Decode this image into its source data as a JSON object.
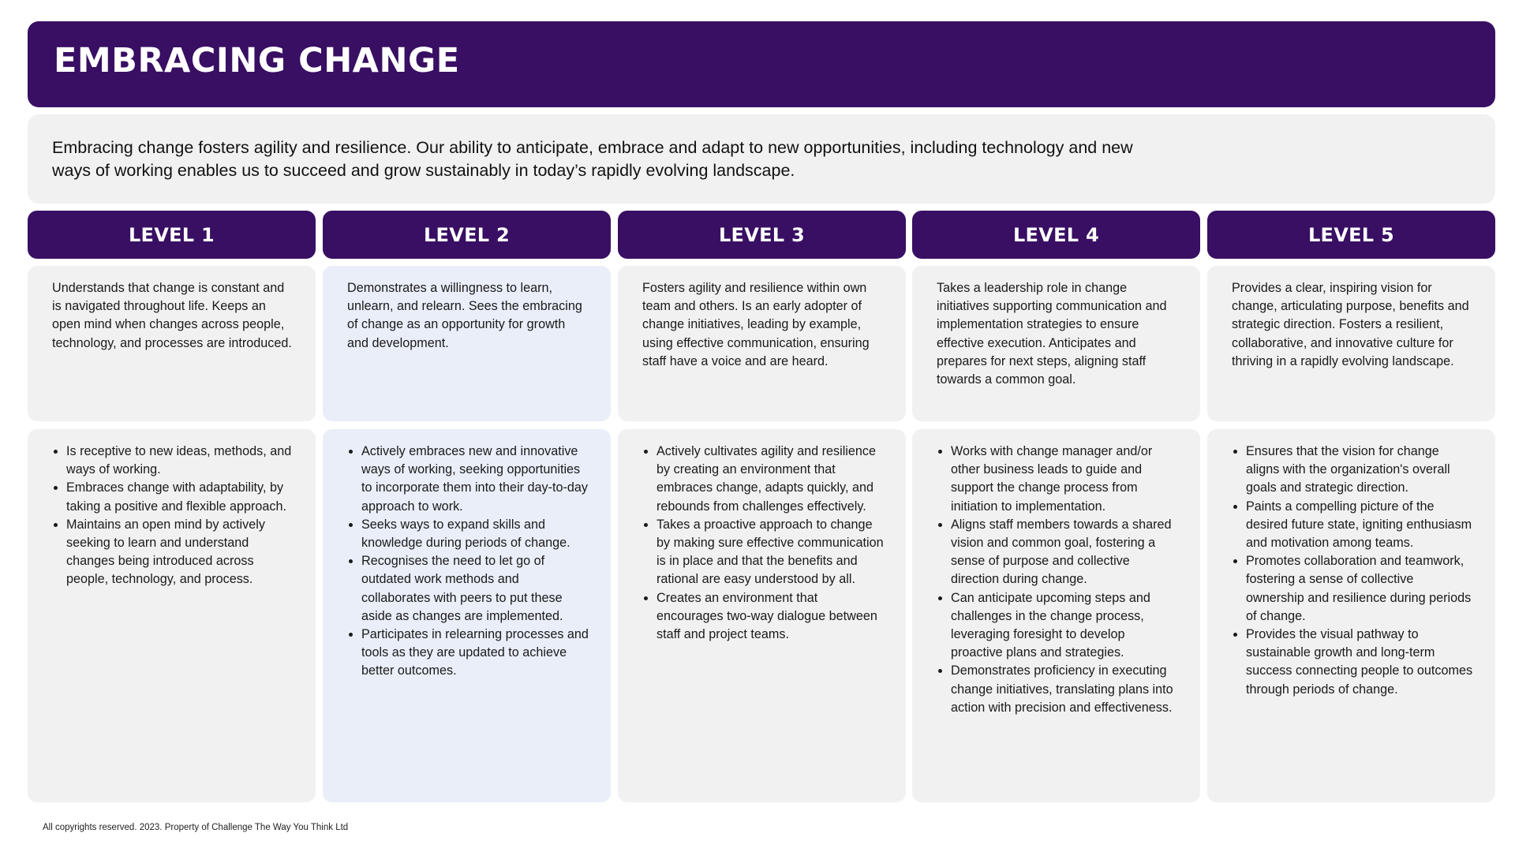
{
  "header": {
    "title": "EMBRACING CHANGE"
  },
  "intro": {
    "text": "Embracing change fosters agility and resilience. Our ability to anticipate, embrace and adapt to new opportunities, including technology and new ways of working enables us to succeed and grow sustainably in today’s rapidly evolving landscape."
  },
  "levels": [
    {
      "label": "LEVEL 1",
      "description": "Understands that change is constant and is navigated throughout life. Keeps an open mind when changes across people, technology, and processes are introduced.",
      "bullets": [
        "Is receptive to new ideas, methods, and ways of working.",
        "Embraces change with adaptability, by taking a positive and flexible approach.",
        "Maintains an open mind by actively seeking to learn and understand changes being introduced across people, technology, and process."
      ]
    },
    {
      "label": "LEVEL 2",
      "description": "Demonstrates a willingness to learn, unlearn, and relearn. Sees the embracing of change as an opportunity for growth and development.",
      "bullets": [
        "Actively embraces new and innovative ways of working, seeking opportunities to incorporate them into their day-to-day approach to work.",
        "Seeks ways to expand skills and knowledge during periods of change.",
        "Recognises the need to let go of outdated work methods and collaborates with peers to put these aside as changes are implemented.",
        "Participates in relearning processes and tools as they are updated to achieve better outcomes."
      ]
    },
    {
      "label": "LEVEL 3",
      "description": "Fosters agility and resilience within own team and others. Is an early adopter of change initiatives, leading by example, using effective communication, ensuring staff have a voice and are heard.",
      "bullets": [
        "Actively cultivates agility and resilience by creating an environment that embraces change, adapts quickly, and rebounds from challenges effectively.",
        "Takes a proactive approach to change by making sure effective communication is in place and that the benefits and rational are easy understood by all.",
        "Creates an environment that encourages two-way dialogue between staff and project teams."
      ]
    },
    {
      "label": "LEVEL 4",
      "description": "Takes a leadership role in change initiatives supporting communication and implementation strategies to ensure effective execution. Anticipates and prepares for next steps, aligning staff towards a common goal.",
      "bullets": [
        "Works with change manager and/or other business leads to guide and support the change process from initiation to implementation.",
        "Aligns staff members towards a shared vision and common goal, fostering a sense of purpose and collective direction during change.",
        "Can anticipate upcoming steps and challenges in the change process, leveraging foresight to develop proactive plans and strategies.",
        "Demonstrates proficiency in executing change initiatives, translating plans into action with precision and effectiveness."
      ]
    },
    {
      "label": "LEVEL 5",
      "description": "Provides a clear, inspiring vision for change, articulating purpose, benefits and strategic direction. Fosters a resilient, collaborative, and innovative culture for thriving in a rapidly evolving landscape.",
      "bullets": [
        "Ensures that the vision for change aligns with the organization's overall goals and strategic direction.",
        "Paints a compelling picture of the desired future state, igniting enthusiasm and motivation among teams.",
        "Promotes collaboration and teamwork, fostering a sense of collective ownership and resilience during periods of change.",
        "Provides the visual pathway to sustainable growth and long-term success connecting people to outcomes through periods of change."
      ]
    }
  ],
  "footer": {
    "text": "All copyrights reserved. 2023. Property of Challenge The Way You Think Ltd"
  }
}
